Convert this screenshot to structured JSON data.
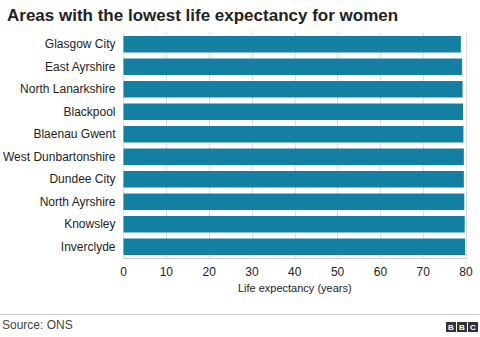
{
  "chart_data": {
    "type": "bar",
    "orientation": "horizontal",
    "title": "Areas with the lowest life expectancy for women",
    "categories": [
      "Glasgow City",
      "East Ayrshire",
      "North Lanarkshire",
      "Blackpool",
      "Blaenau Gwent",
      "West Dunbartonshire",
      "Dundee City",
      "North Ayrshire",
      "Knowsley",
      "Inverclyde"
    ],
    "values": [
      78.8,
      79.1,
      79.2,
      79.3,
      79.4,
      79.5,
      79.5,
      79.6,
      79.7,
      79.8
    ],
    "color": "#1380a1",
    "xlabel": "Life expectancy (years)",
    "xlim": [
      0,
      80
    ],
    "xticks": [
      0,
      10,
      20,
      30,
      40,
      50,
      60,
      70,
      80
    ],
    "grid": true,
    "source": "Source: ONS",
    "logo": "BBC"
  }
}
